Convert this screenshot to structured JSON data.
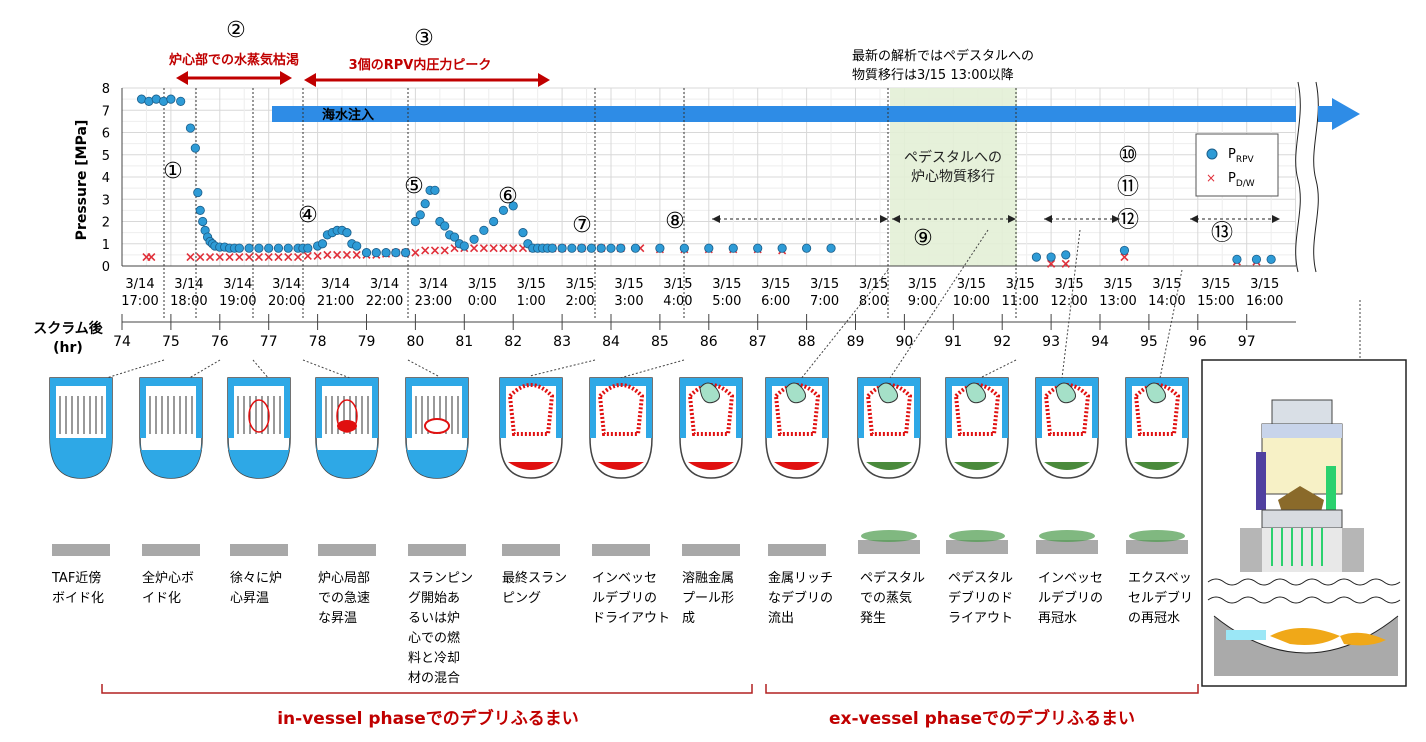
{
  "chart_data": {
    "type": "scatter",
    "ylabel": "Pressure [MPa]",
    "ylim": [
      0,
      8
    ],
    "yticks": [
      "0",
      "1",
      "2",
      "3",
      "4",
      "5",
      "6",
      "7",
      "8"
    ],
    "x_time_ticks": [
      [
        "3/14",
        "17:00"
      ],
      [
        "3/14",
        "18:00"
      ],
      [
        "3/14",
        "19:00"
      ],
      [
        "3/14",
        "20:00"
      ],
      [
        "3/14",
        "21:00"
      ],
      [
        "3/14",
        "22:00"
      ],
      [
        "3/14",
        "23:00"
      ],
      [
        "3/15",
        "0:00"
      ],
      [
        "3/15",
        "1:00"
      ],
      [
        "3/15",
        "2:00"
      ],
      [
        "3/15",
        "3:00"
      ],
      [
        "3/15",
        "4:00"
      ],
      [
        "3/15",
        "5:00"
      ],
      [
        "3/15",
        "6:00"
      ],
      [
        "3/15",
        "7:00"
      ],
      [
        "3/15",
        "8:00"
      ],
      [
        "3/15",
        "9:00"
      ],
      [
        "3/15",
        "10:00"
      ],
      [
        "3/15",
        "11:00"
      ],
      [
        "3/15",
        "12:00"
      ],
      [
        "3/15",
        "13:00"
      ],
      [
        "3/15",
        "14:00"
      ],
      [
        "3/15",
        "15:00"
      ],
      [
        "3/15",
        "16:00"
      ]
    ],
    "x_hr_label": "スクラム後\n(hr)",
    "x_hr_ticks": [
      "74",
      "75",
      "76",
      "77",
      "78",
      "79",
      "80",
      "81",
      "82",
      "83",
      "84",
      "85",
      "86",
      "87",
      "88",
      "89",
      "90",
      "91",
      "92",
      "93",
      "94",
      "95",
      "96",
      "97"
    ],
    "legend": {
      "position": "top-right",
      "entries": [
        {
          "name": "P",
          "sub": "RPV",
          "marker": "circle",
          "color": "#2e9bd6"
        },
        {
          "name": "P",
          "sub": "D/W",
          "marker": "x",
          "color": "#e0303a"
        }
      ]
    },
    "series": [
      {
        "name": "PRPV",
        "x": [
          74.4,
          74.55,
          74.7,
          74.85,
          75.0,
          75.2,
          75.4,
          75.5,
          75.55,
          75.6,
          75.65,
          75.7,
          75.75,
          75.8,
          75.85,
          75.9,
          76.0,
          76.1,
          76.2,
          76.3,
          76.4,
          76.6,
          76.8,
          77.0,
          77.2,
          77.4,
          77.6,
          77.7,
          77.8,
          78.0,
          78.1,
          78.2,
          78.3,
          78.4,
          78.5,
          78.6,
          78.7,
          78.8,
          79.0,
          79.2,
          79.4,
          79.6,
          79.8,
          80.0,
          80.1,
          80.2,
          80.3,
          80.4,
          80.5,
          80.6,
          80.7,
          80.8,
          80.9,
          81.0,
          81.2,
          81.4,
          81.6,
          81.8,
          82.0,
          82.2,
          82.3,
          82.4,
          82.5,
          82.6,
          82.7,
          82.8,
          83.0,
          83.2,
          83.4,
          83.6,
          83.8,
          84.0,
          84.2,
          84.5,
          85.0,
          85.5,
          86.0,
          86.5,
          87.0,
          87.5,
          88.0,
          88.5,
          92.7,
          93.0,
          93.3,
          94.5,
          96.8,
          97.2,
          97.5
        ],
        "y": [
          7.5,
          7.4,
          7.5,
          7.4,
          7.5,
          7.4,
          6.2,
          5.3,
          3.3,
          2.5,
          2.0,
          1.6,
          1.3,
          1.1,
          1.0,
          0.9,
          0.85,
          0.85,
          0.8,
          0.8,
          0.8,
          0.8,
          0.8,
          0.8,
          0.8,
          0.8,
          0.8,
          0.8,
          0.8,
          0.9,
          1.0,
          1.4,
          1.5,
          1.6,
          1.6,
          1.5,
          1.0,
          0.9,
          0.6,
          0.6,
          0.6,
          0.6,
          0.6,
          2.0,
          2.3,
          2.8,
          3.4,
          3.4,
          2.0,
          1.8,
          1.4,
          1.3,
          1.0,
          0.9,
          1.2,
          1.6,
          2.0,
          2.5,
          2.7,
          1.5,
          1.0,
          0.8,
          0.8,
          0.8,
          0.8,
          0.8,
          0.8,
          0.8,
          0.8,
          0.8,
          0.8,
          0.8,
          0.8,
          0.8,
          0.8,
          0.8,
          0.8,
          0.8,
          0.8,
          0.8,
          0.8,
          0.8,
          0.4,
          0.4,
          0.5,
          0.7,
          0.3,
          0.3,
          0.3
        ]
      },
      {
        "name": "PD/W",
        "x": [
          74.5,
          74.6,
          75.4,
          75.6,
          75.8,
          76.0,
          76.2,
          76.4,
          76.6,
          76.8,
          77.0,
          77.2,
          77.4,
          77.6,
          77.8,
          78.0,
          78.2,
          78.4,
          78.6,
          78.8,
          79.0,
          79.2,
          79.4,
          79.6,
          79.8,
          80.0,
          80.2,
          80.4,
          80.6,
          80.8,
          81.0,
          81.2,
          81.4,
          81.6,
          81.8,
          82.0,
          82.2,
          82.4,
          82.6,
          82.8,
          83.0,
          83.4,
          83.8,
          84.2,
          84.6,
          85.0,
          85.5,
          86.0,
          86.5,
          87.0,
          87.5,
          93.0,
          93.3,
          94.5,
          96.8,
          97.2
        ],
        "y": [
          0.4,
          0.4,
          0.4,
          0.4,
          0.4,
          0.4,
          0.4,
          0.4,
          0.4,
          0.4,
          0.4,
          0.4,
          0.4,
          0.4,
          0.45,
          0.45,
          0.5,
          0.5,
          0.5,
          0.5,
          0.5,
          0.5,
          0.55,
          0.6,
          0.6,
          0.6,
          0.7,
          0.7,
          0.7,
          0.8,
          0.8,
          0.8,
          0.8,
          0.8,
          0.8,
          0.8,
          0.8,
          0.8,
          0.8,
          0.8,
          0.8,
          0.8,
          0.8,
          0.8,
          0.8,
          0.75,
          0.75,
          0.75,
          0.75,
          0.75,
          0.7,
          0.1,
          0.1,
          0.4,
          0.2,
          0.2
        ]
      }
    ],
    "annotations": {
      "circled": [
        "①",
        "②",
        "③",
        "④",
        "⑤",
        "⑥",
        "⑦",
        "⑧",
        "⑨",
        "⑩",
        "⑪",
        "⑫",
        "⑬"
      ],
      "phase2": "炉心部での水蒸気枯渇",
      "phase3": "3個のRPV内圧力ピーク",
      "seawater": "海水注入",
      "note_line1": "最新の解析ではペデスタルへの",
      "note_line2": "物質移行は3/15 13:00以降",
      "pedestal_line1": "ペデスタルへの",
      "pedestal_line2": "炉心物質移行"
    }
  },
  "stages": [
    [
      "TAF近傍",
      "ボイド化"
    ],
    [
      "全炉心ボ",
      "イド化"
    ],
    [
      "徐々に炉",
      "心昇温"
    ],
    [
      "炉心局部",
      "での急速",
      "な昇温"
    ],
    [
      "スランピン",
      "グ開始あ",
      "るいは炉",
      "心での燃",
      "料と冷却",
      "材の混合"
    ],
    [
      "最終スラン",
      "ピング"
    ],
    [
      "インベッセ",
      "ルデブリの",
      "ドライアウト"
    ],
    [
      "溶融金属",
      "プール形",
      "成"
    ],
    [
      "金属リッチ",
      "なデブリの",
      "流出"
    ],
    [
      "ペデスタル",
      "での蒸気",
      "発生"
    ],
    [
      "ペデスタル",
      "デブリのド",
      "ライアウト"
    ],
    [
      "インベッセ",
      "ルデブリの",
      "再冠水"
    ],
    [
      "エクスベッ",
      "セルデブリ",
      "の再冠水"
    ]
  ],
  "phases": {
    "in_vessel": "in-vessel phaseでのデブリふるまい",
    "ex_vessel": "ex-vessel phaseでのデブリふるまい"
  },
  "colors": {
    "rpv": "#2e9bd6",
    "dw": "#e0303a",
    "accent_red": "#c00000",
    "water": "#1fa3e6",
    "pedestal_bg": "#e3f0d6"
  }
}
